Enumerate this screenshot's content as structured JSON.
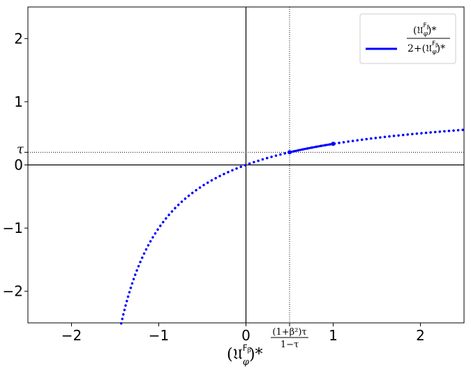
{
  "chart_data": {
    "type": "line",
    "title": "",
    "xlim": [
      -2.5,
      2.5
    ],
    "ylim": [
      -2.5,
      2.5
    ],
    "x_ticks": [
      {
        "value": -2,
        "label": "−2"
      },
      {
        "value": -1,
        "label": "−1"
      },
      {
        "value": 0,
        "label": "0"
      },
      {
        "value": 1,
        "label": "1"
      },
      {
        "value": 2,
        "label": "2"
      }
    ],
    "y_ticks": [
      {
        "value": -2,
        "label": "−2"
      },
      {
        "value": -1,
        "label": "−1"
      },
      {
        "value": 0,
        "label": "0"
      },
      {
        "value": 1,
        "label": "1"
      },
      {
        "value": 2,
        "label": "2"
      }
    ],
    "tau": 0.2,
    "x_special": {
      "value": 0.5,
      "numerator": "(1+β²)τ",
      "denominator": "1−τ"
    },
    "y_special": {
      "value": 0.2,
      "label": "τ"
    },
    "xlabel": "(𝔘",
    "xlabel_sup": "F",
    "xlabel_supsub": "β",
    "xlabel_sub": "φ",
    "xlabel_tail": ")*",
    "legend": {
      "position": "upper right",
      "numerator": "(𝔘ᶠᵝ)*",
      "denominator": "2+(𝔘ᶠᵝ)*",
      "num_main": "(𝔘",
      "num_sup": "F",
      "num_supsub": "β",
      "num_sub": "φ",
      "num_tail": ")*",
      "den_main": "2+(𝔘",
      "den_sup": "F",
      "den_supsub": "β",
      "den_sub": "φ",
      "den_tail": ")*"
    },
    "series": [
      {
        "function": "x/(2+x)",
        "style": "dotted",
        "color": "#0000ff",
        "x_range": [
          -1.43,
          2.5
        ]
      },
      {
        "function": "x/(2+x)",
        "style": "solid",
        "color": "#0000ff",
        "x_range": [
          0.5,
          1.0
        ],
        "endpoints": [
          {
            "x": 0.5,
            "y": 0.2
          },
          {
            "x": 1.0,
            "y": 0.3333
          }
        ]
      }
    ],
    "axis_lines": {
      "x0": true,
      "y0": true
    },
    "grid": false
  }
}
